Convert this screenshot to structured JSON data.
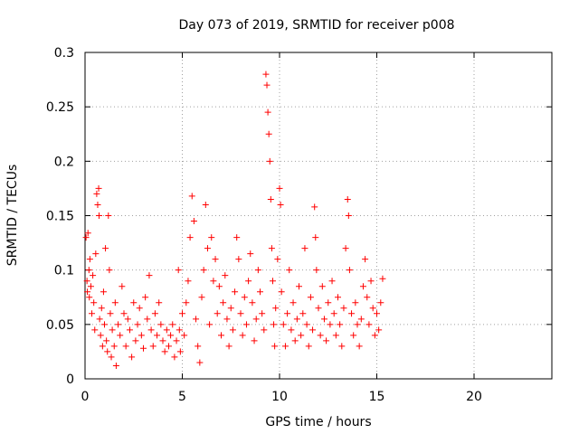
{
  "chart_data": {
    "type": "scatter",
    "title": "Day 073 of 2019, SRMTID for receiver p008",
    "xlabel": "GPS time / hours",
    "ylabel": "SRMTID / TECUs",
    "xlim": [
      0,
      24
    ],
    "ylim": [
      0,
      0.3
    ],
    "x_ticks": [
      0,
      5,
      10,
      15,
      20
    ],
    "x_tick_labels": [
      "0",
      "5",
      "10",
      "15",
      "20"
    ],
    "y_ticks": [
      0,
      0.05,
      0.1,
      0.15,
      0.2,
      0.25,
      0.3
    ],
    "y_tick_labels": [
      "0",
      "0.05",
      "0.1",
      "0.15",
      "0.2",
      "0.25",
      "0.3"
    ],
    "grid": true,
    "marker": "+",
    "color": "#ff0000",
    "series": [
      {
        "name": "SRMTID",
        "points": [
          [
            0.05,
            0.13
          ],
          [
            0.1,
            0.09
          ],
          [
            0.12,
            0.08
          ],
          [
            0.15,
            0.134
          ],
          [
            0.2,
            0.1
          ],
          [
            0.22,
            0.075
          ],
          [
            0.25,
            0.11
          ],
          [
            0.3,
            0.085
          ],
          [
            0.35,
            0.06
          ],
          [
            0.4,
            0.095
          ],
          [
            0.45,
            0.07
          ],
          [
            0.5,
            0.045
          ],
          [
            0.55,
            0.115
          ],
          [
            0.6,
            0.17
          ],
          [
            0.65,
            0.16
          ],
          [
            0.7,
            0.175
          ],
          [
            0.72,
            0.15
          ],
          [
            0.75,
            0.055
          ],
          [
            0.8,
            0.04
          ],
          [
            0.85,
            0.065
          ],
          [
            0.9,
            0.03
          ],
          [
            0.95,
            0.08
          ],
          [
            1.0,
            0.05
          ],
          [
            1.05,
            0.12
          ],
          [
            1.1,
            0.035
          ],
          [
            1.15,
            0.025
          ],
          [
            1.2,
            0.15
          ],
          [
            1.25,
            0.1
          ],
          [
            1.3,
            0.06
          ],
          [
            1.35,
            0.02
          ],
          [
            1.4,
            0.045
          ],
          [
            1.5,
            0.03
          ],
          [
            1.55,
            0.07
          ],
          [
            1.6,
            0.012
          ],
          [
            1.7,
            0.05
          ],
          [
            1.8,
            0.04
          ],
          [
            1.9,
            0.085
          ],
          [
            2.0,
            0.06
          ],
          [
            2.1,
            0.03
          ],
          [
            2.2,
            0.055
          ],
          [
            2.3,
            0.045
          ],
          [
            2.4,
            0.02
          ],
          [
            2.5,
            0.07
          ],
          [
            2.6,
            0.035
          ],
          [
            2.7,
            0.05
          ],
          [
            2.8,
            0.065
          ],
          [
            2.9,
            0.04
          ],
          [
            3.0,
            0.028
          ],
          [
            3.1,
            0.075
          ],
          [
            3.2,
            0.055
          ],
          [
            3.3,
            0.095
          ],
          [
            3.4,
            0.045
          ],
          [
            3.5,
            0.03
          ],
          [
            3.6,
            0.06
          ],
          [
            3.7,
            0.04
          ],
          [
            3.8,
            0.07
          ],
          [
            3.9,
            0.05
          ],
          [
            4.0,
            0.035
          ],
          [
            4.1,
            0.025
          ],
          [
            4.2,
            0.045
          ],
          [
            4.3,
            0.03
          ],
          [
            4.4,
            0.04
          ],
          [
            4.5,
            0.05
          ],
          [
            4.6,
            0.02
          ],
          [
            4.7,
            0.035
          ],
          [
            4.8,
            0.1
          ],
          [
            4.85,
            0.045
          ],
          [
            4.9,
            0.025
          ],
          [
            5.0,
            0.06
          ],
          [
            5.1,
            0.04
          ],
          [
            5.2,
            0.07
          ],
          [
            5.3,
            0.09
          ],
          [
            5.4,
            0.13
          ],
          [
            5.5,
            0.168
          ],
          [
            5.6,
            0.145
          ],
          [
            5.7,
            0.055
          ],
          [
            5.8,
            0.03
          ],
          [
            5.9,
            0.015
          ],
          [
            6.0,
            0.075
          ],
          [
            6.1,
            0.1
          ],
          [
            6.2,
            0.16
          ],
          [
            6.3,
            0.12
          ],
          [
            6.4,
            0.05
          ],
          [
            6.5,
            0.13
          ],
          [
            6.6,
            0.09
          ],
          [
            6.7,
            0.11
          ],
          [
            6.8,
            0.06
          ],
          [
            6.9,
            0.085
          ],
          [
            7.0,
            0.04
          ],
          [
            7.1,
            0.07
          ],
          [
            7.2,
            0.095
          ],
          [
            7.3,
            0.055
          ],
          [
            7.4,
            0.03
          ],
          [
            7.5,
            0.065
          ],
          [
            7.6,
            0.045
          ],
          [
            7.7,
            0.08
          ],
          [
            7.8,
            0.13
          ],
          [
            7.9,
            0.11
          ],
          [
            8.0,
            0.06
          ],
          [
            8.1,
            0.04
          ],
          [
            8.2,
            0.075
          ],
          [
            8.3,
            0.05
          ],
          [
            8.4,
            0.09
          ],
          [
            8.5,
            0.115
          ],
          [
            8.6,
            0.07
          ],
          [
            8.7,
            0.035
          ],
          [
            8.8,
            0.055
          ],
          [
            8.9,
            0.1
          ],
          [
            9.0,
            0.08
          ],
          [
            9.1,
            0.06
          ],
          [
            9.2,
            0.045
          ],
          [
            9.3,
            0.28
          ],
          [
            9.35,
            0.27
          ],
          [
            9.4,
            0.245
          ],
          [
            9.45,
            0.225
          ],
          [
            9.5,
            0.2
          ],
          [
            9.55,
            0.165
          ],
          [
            9.6,
            0.12
          ],
          [
            9.65,
            0.09
          ],
          [
            9.7,
            0.05
          ],
          [
            9.75,
            0.03
          ],
          [
            9.8,
            0.065
          ],
          [
            9.9,
            0.11
          ],
          [
            10.0,
            0.175
          ],
          [
            10.05,
            0.16
          ],
          [
            10.1,
            0.08
          ],
          [
            10.2,
            0.05
          ],
          [
            10.3,
            0.03
          ],
          [
            10.4,
            0.06
          ],
          [
            10.5,
            0.1
          ],
          [
            10.6,
            0.045
          ],
          [
            10.7,
            0.07
          ],
          [
            10.8,
            0.035
          ],
          [
            10.9,
            0.055
          ],
          [
            11.0,
            0.085
          ],
          [
            11.1,
            0.04
          ],
          [
            11.2,
            0.06
          ],
          [
            11.3,
            0.12
          ],
          [
            11.4,
            0.05
          ],
          [
            11.5,
            0.03
          ],
          [
            11.6,
            0.075
          ],
          [
            11.7,
            0.045
          ],
          [
            11.8,
            0.158
          ],
          [
            11.85,
            0.13
          ],
          [
            11.9,
            0.1
          ],
          [
            12.0,
            0.065
          ],
          [
            12.1,
            0.04
          ],
          [
            12.2,
            0.085
          ],
          [
            12.3,
            0.055
          ],
          [
            12.4,
            0.035
          ],
          [
            12.5,
            0.07
          ],
          [
            12.6,
            0.05
          ],
          [
            12.7,
            0.09
          ],
          [
            12.8,
            0.06
          ],
          [
            12.9,
            0.04
          ],
          [
            13.0,
            0.075
          ],
          [
            13.1,
            0.05
          ],
          [
            13.2,
            0.03
          ],
          [
            13.3,
            0.065
          ],
          [
            13.4,
            0.12
          ],
          [
            13.5,
            0.165
          ],
          [
            13.55,
            0.15
          ],
          [
            13.6,
            0.1
          ],
          [
            13.7,
            0.06
          ],
          [
            13.8,
            0.04
          ],
          [
            13.9,
            0.07
          ],
          [
            14.0,
            0.05
          ],
          [
            14.1,
            0.03
          ],
          [
            14.2,
            0.055
          ],
          [
            14.3,
            0.085
          ],
          [
            14.4,
            0.11
          ],
          [
            14.5,
            0.075
          ],
          [
            14.6,
            0.05
          ],
          [
            14.7,
            0.09
          ],
          [
            14.8,
            0.065
          ],
          [
            14.9,
            0.04
          ],
          [
            15.0,
            0.06
          ],
          [
            15.1,
            0.045
          ],
          [
            15.2,
            0.07
          ],
          [
            15.3,
            0.092
          ]
        ]
      }
    ]
  }
}
